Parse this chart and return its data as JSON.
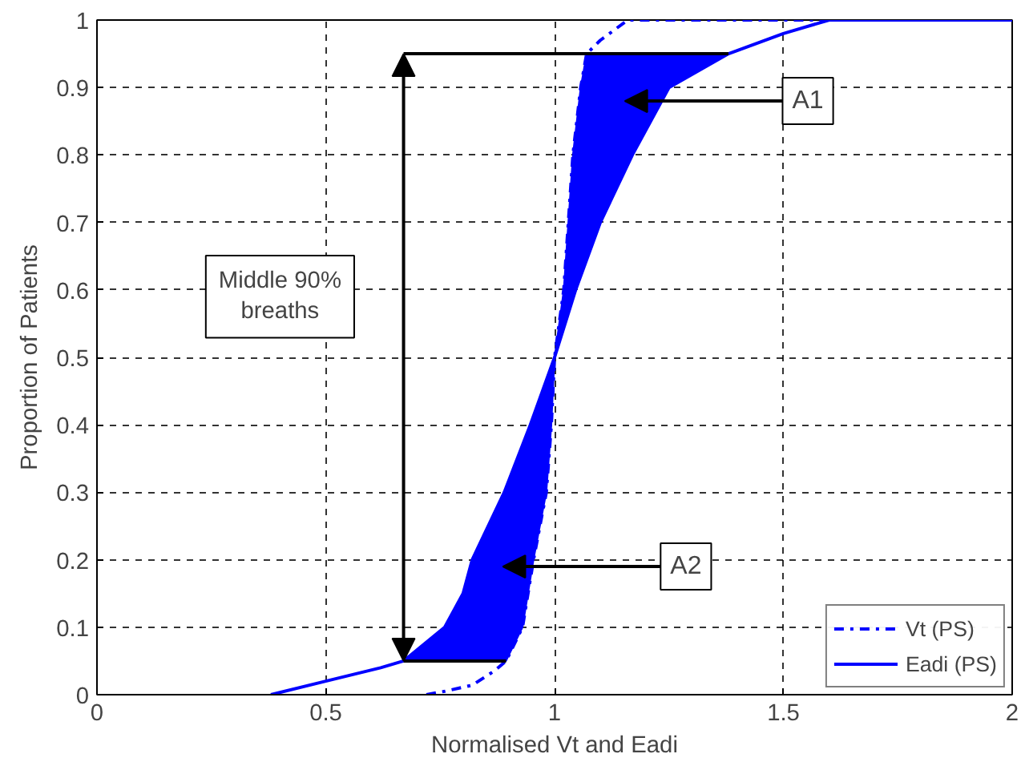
{
  "chart_data": {
    "type": "line",
    "xlabel": "Normalised Vt and Eadi",
    "ylabel": "Proportion of Patients",
    "xlim": [
      0,
      2
    ],
    "ylim": [
      0,
      1
    ],
    "xticks": [
      0,
      0.5,
      1,
      1.5,
      2
    ],
    "yticks": [
      0,
      0.1,
      0.2,
      0.3,
      0.4,
      0.5,
      0.6,
      0.7,
      0.8,
      0.9,
      1
    ],
    "grid": true,
    "legend": "bottom right",
    "series": [
      {
        "type": "area",
        "color": "#0000ff",
        "x": [
          0.67,
          0.76,
          0.8,
          0.82,
          0.89,
          0.947,
          1.0,
          1.046,
          1.1,
          1.17,
          1.25,
          1.38,
          1.07,
          1.057,
          1.04,
          1.03,
          1.02,
          1.0,
          0.993,
          0.982,
          0.954,
          0.93,
          0.894
        ],
        "values": [
          0.05,
          0.1,
          0.15,
          0.2,
          0.3,
          0.4,
          0.5,
          0.6,
          0.7,
          0.8,
          0.9,
          0.95,
          0.95,
          0.9,
          0.8,
          0.7,
          0.6,
          0.5,
          0.4,
          0.3,
          0.2,
          0.1,
          0.05
        ]
      },
      {
        "name": "Vt (PS)",
        "color": "#0000ff",
        "line_style": "dashed",
        "x": [
          0.72,
          0.76,
          0.82,
          0.87,
          0.894,
          0.93,
          0.954,
          0.982,
          0.993,
          1.0,
          1.02,
          1.03,
          1.04,
          1.057,
          1.07,
          1.1,
          1.16,
          2.0
        ],
        "values": [
          0,
          0.005,
          0.014,
          0.036,
          0.05,
          0.1,
          0.2,
          0.3,
          0.4,
          0.5,
          0.6,
          0.7,
          0.8,
          0.9,
          0.95,
          0.97,
          1.0,
          1.0
        ]
      },
      {
        "name": "Eadi (PS)",
        "color": "#0000ff",
        "line_style": "solid",
        "x": [
          0.38,
          0.5,
          0.62,
          0.67,
          0.76,
          0.8,
          0.82,
          0.89,
          0.947,
          1.0,
          1.046,
          1.1,
          1.17,
          1.25,
          1.38,
          1.5,
          1.6,
          2.0
        ],
        "values": [
          0,
          0.02,
          0.04,
          0.05,
          0.1,
          0.15,
          0.2,
          0.3,
          0.4,
          0.5,
          0.6,
          0.7,
          0.8,
          0.9,
          0.95,
          0.98,
          1.0,
          1.0
        ]
      }
    ],
    "annotations": [
      "Middle 90%\nbreaths",
      "A1",
      "A2"
    ]
  }
}
